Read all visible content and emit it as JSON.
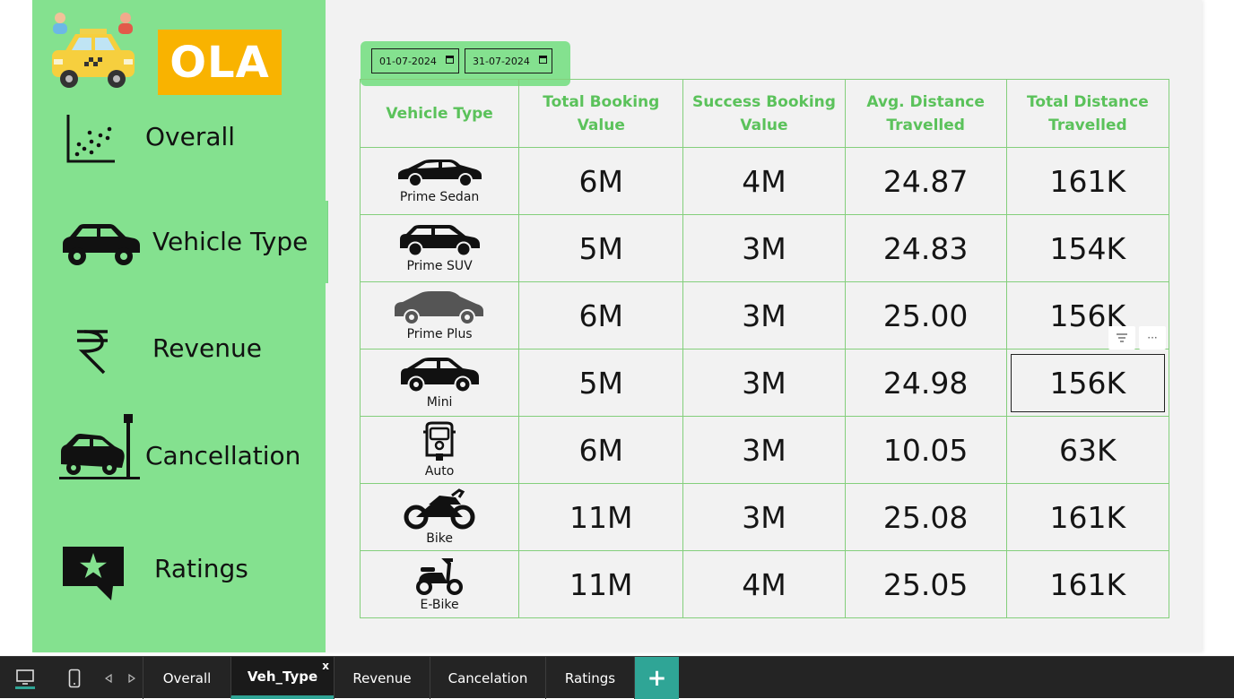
{
  "brand": {
    "logo_text": "OLA"
  },
  "sidebar": {
    "items": [
      {
        "label": "Overall",
        "icon": "scatter-chart-icon"
      },
      {
        "label": "Vehicle Type",
        "icon": "car-icon"
      },
      {
        "label": "Revenue",
        "icon": "rupee-icon"
      },
      {
        "label": "Cancellation",
        "icon": "car-crash-icon"
      },
      {
        "label": "Ratings",
        "icon": "star-speech-bubble-icon"
      }
    ]
  },
  "date_filter": {
    "start": "01-07-2024",
    "end": "31-07-2024"
  },
  "table": {
    "headers": [
      "Vehicle Type",
      "Total Booking Value",
      "Success Booking Value",
      "Avg. Distance Travelled",
      "Total Distance Travelled"
    ],
    "header_lines": [
      [
        "Vehicle Type"
      ],
      [
        "Total Booking",
        "Value"
      ],
      [
        "Success Booking",
        "Value"
      ],
      [
        "Avg. Distance",
        "Travelled"
      ],
      [
        "Total Distance",
        "Travelled"
      ]
    ],
    "rows": [
      {
        "vehicle": "Prime Sedan",
        "total_booking": "6M",
        "success_booking": "4M",
        "avg_distance": "24.87",
        "total_distance": "161K"
      },
      {
        "vehicle": "Prime SUV",
        "total_booking": "5M",
        "success_booking": "3M",
        "avg_distance": "24.83",
        "total_distance": "154K"
      },
      {
        "vehicle": "Prime Plus",
        "total_booking": "6M",
        "success_booking": "3M",
        "avg_distance": "25.00",
        "total_distance": "156K"
      },
      {
        "vehicle": "Mini",
        "total_booking": "5M",
        "success_booking": "3M",
        "avg_distance": "24.98",
        "total_distance": "156K"
      },
      {
        "vehicle": "Auto",
        "total_booking": "6M",
        "success_booking": "3M",
        "avg_distance": "10.05",
        "total_distance": "63K"
      },
      {
        "vehicle": "Bike",
        "total_booking": "11M",
        "success_booking": "3M",
        "avg_distance": "25.08",
        "total_distance": "161K"
      },
      {
        "vehicle": "E-Bike",
        "total_booking": "11M",
        "success_booking": "4M",
        "avg_distance": "25.05",
        "total_distance": "161K"
      }
    ]
  },
  "visual_tools": {
    "filter_icon": "filter-icon",
    "more_icon": "more-options-icon",
    "more_label": "···"
  },
  "page_tabs": [
    {
      "label": "Overall"
    },
    {
      "label": "Veh_Type",
      "close": "x"
    },
    {
      "label": "Revenue"
    },
    {
      "label": "Cancelation"
    },
    {
      "label": "Ratings"
    }
  ],
  "add_page_label": "+",
  "colors": {
    "sidebar": "#84e18f",
    "header_text": "#5bc25b",
    "ola_logo": "#f9b300",
    "active_tab_underline": "#2fa596"
  }
}
